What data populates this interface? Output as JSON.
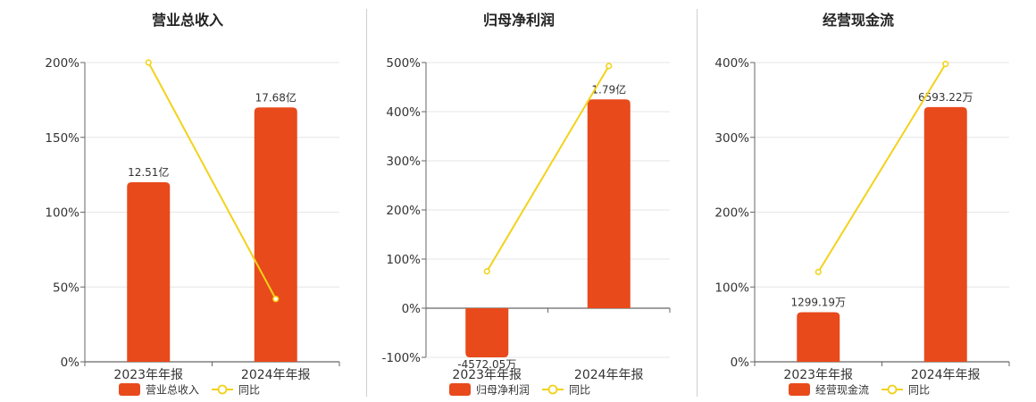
{
  "colors": {
    "bar": "#e84a1b",
    "line": "#f2d21a",
    "grid": "#e6e6e6",
    "axis": "#666666"
  },
  "chart_data": [
    {
      "type": "bar",
      "title": "营业总收入",
      "categories": [
        "2023年年报",
        "2024年年报"
      ],
      "series": [
        {
          "name": "营业总收入",
          "type": "bar",
          "values": [
            120,
            170
          ],
          "labels": [
            "12.51亿",
            "17.68亿"
          ]
        },
        {
          "name": "同比",
          "type": "line",
          "values": [
            200,
            42
          ]
        }
      ],
      "yticks": [
        "200%",
        "150%",
        "100%",
        "50%",
        "0%"
      ],
      "ylim": [
        0,
        200
      ]
    },
    {
      "type": "bar",
      "title": "归母净利润",
      "categories": [
        "2023年年报",
        "2024年年报"
      ],
      "series": [
        {
          "name": "归母净利润",
          "type": "bar",
          "values": [
            -100,
            425
          ],
          "labels": [
            "-4572.05万",
            "1.79亿"
          ]
        },
        {
          "name": "同比",
          "type": "line",
          "values": [
            75,
            493
          ]
        }
      ],
      "yticks": [
        "500%",
        "400%",
        "300%",
        "200%",
        "100%",
        "0%",
        "-100%"
      ],
      "ylim": [
        -100,
        500
      ]
    },
    {
      "type": "bar",
      "title": "经营现金流",
      "categories": [
        "2023年年报",
        "2024年年报"
      ],
      "series": [
        {
          "name": "经营现金流",
          "type": "bar",
          "values": [
            68,
            349
          ],
          "labels": [
            "1299.19万",
            "6593.22万"
          ]
        },
        {
          "name": "同比",
          "type": "line",
          "values": [
            123,
            408
          ]
        }
      ],
      "yticks": [
        "400%",
        "300%",
        "200%",
        "100%",
        "0%"
      ],
      "ylim": [
        0,
        410
      ]
    }
  ]
}
